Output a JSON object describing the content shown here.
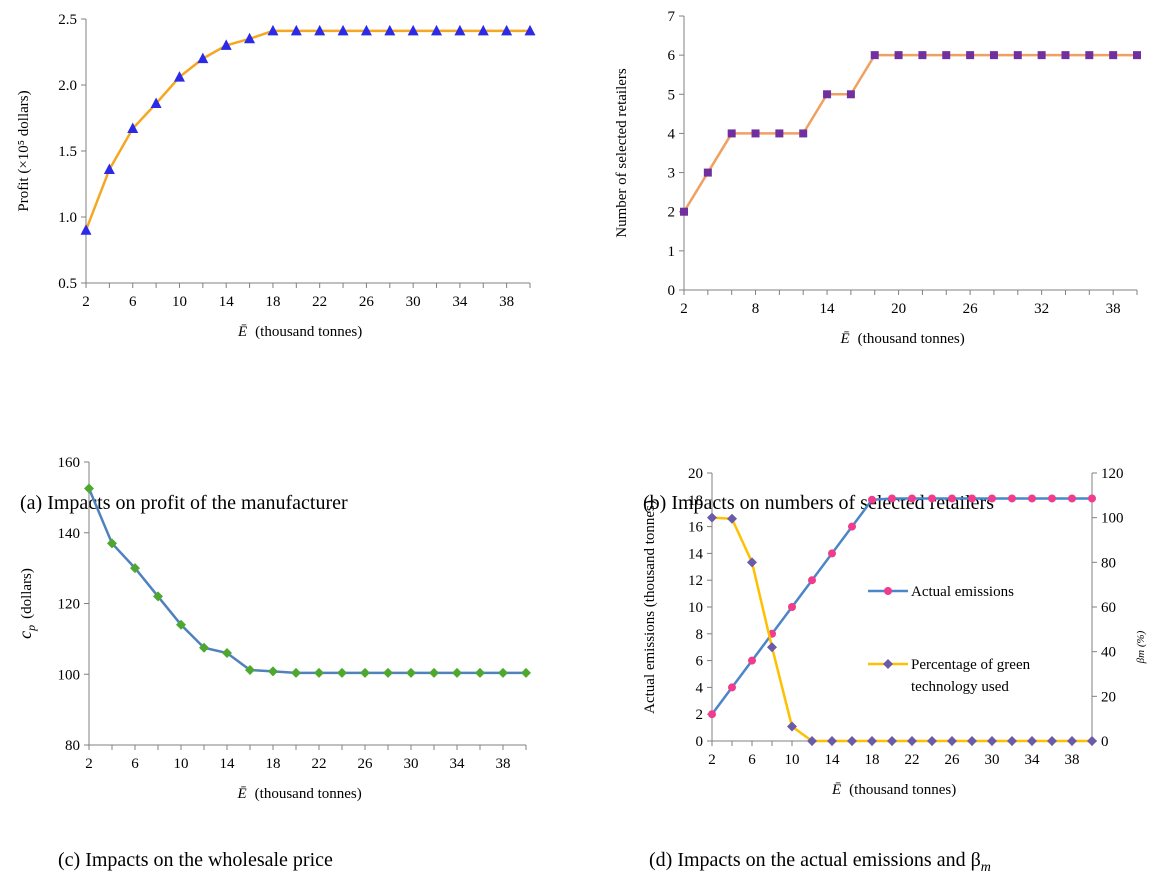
{
  "chart_data": [
    {
      "id": "a",
      "type": "line",
      "caption": "(a) Impacts on profit of the manufacturer",
      "xlabel_sym": "Ē",
      "xlabel": "(thousand tonnes)",
      "ylabel": "Profit  (×10⁵ dollars)",
      "ylim": [
        0.5,
        2.5
      ],
      "yticks": [
        "0.5",
        "1.0",
        "1.5",
        "2.0",
        "2.5"
      ],
      "ytick_values": [
        0.5,
        1.0,
        1.5,
        2.0,
        2.5
      ],
      "xticks": [
        "2",
        "6",
        "10",
        "14",
        "18",
        "22",
        "26",
        "30",
        "34",
        "38"
      ],
      "x": [
        2,
        4,
        6,
        8,
        10,
        12,
        14,
        16,
        18,
        20,
        22,
        24,
        26,
        28,
        30,
        32,
        34,
        36,
        38,
        40
      ],
      "series": [
        {
          "values": [
            0.9,
            1.36,
            1.67,
            1.86,
            2.06,
            2.2,
            2.3,
            2.35,
            2.41,
            2.41,
            2.41,
            2.41,
            2.41,
            2.41,
            2.41,
            2.41,
            2.41,
            2.41,
            2.41,
            2.41
          ],
          "line_color": "#F5A623",
          "marker": "triangle",
          "marker_color": "#2A2AE8"
        }
      ],
      "grid": false
    },
    {
      "id": "b",
      "type": "line",
      "caption": "(b) Impacts on numbers of selected retailers",
      "xlabel_sym": "Ē",
      "xlabel": "(thousand tonnes)",
      "ylabel": "Number of selected retailers",
      "ylim": [
        0,
        7
      ],
      "yticks": [
        "0",
        "1",
        "2",
        "3",
        "4",
        "5",
        "6",
        "7"
      ],
      "ytick_values": [
        0,
        1,
        2,
        3,
        4,
        5,
        6,
        7
      ],
      "xticks": [
        "2",
        "8",
        "14",
        "20",
        "26",
        "32",
        "38"
      ],
      "x": [
        2,
        4,
        6,
        8,
        10,
        12,
        14,
        16,
        18,
        20,
        22,
        24,
        26,
        28,
        30,
        32,
        34,
        36,
        38,
        40
      ],
      "series": [
        {
          "values": [
            2,
            3,
            4,
            4,
            4,
            4,
            5,
            5,
            6,
            6,
            6,
            6,
            6,
            6,
            6,
            6,
            6,
            6,
            6,
            6
          ],
          "line_color": "#F0A060",
          "marker": "square",
          "marker_color": "#7030A0"
        }
      ],
      "grid": false
    },
    {
      "id": "c",
      "type": "line",
      "caption": "(c) Impacts on the wholesale price",
      "xlabel_sym": "Ē",
      "xlabel": "(thousand tonnes)",
      "ylabel_sym": "c",
      "ylabel_sub": "p",
      "ylabel": "(dollars)",
      "ylim": [
        80,
        160
      ],
      "yticks": [
        "80",
        "100",
        "120",
        "140",
        "160"
      ],
      "ytick_values": [
        80,
        100,
        120,
        140,
        160
      ],
      "xticks": [
        "2",
        "6",
        "10",
        "14",
        "18",
        "22",
        "26",
        "30",
        "34",
        "38"
      ],
      "x": [
        2,
        4,
        6,
        8,
        10,
        12,
        14,
        16,
        18,
        20,
        22,
        24,
        26,
        28,
        30,
        32,
        34,
        36,
        38,
        40
      ],
      "series": [
        {
          "values": [
            152.5,
            137.0,
            130.0,
            122.0,
            114.0,
            107.5,
            106.0,
            101.2,
            100.8,
            100.4,
            100.4,
            100.4,
            100.4,
            100.4,
            100.4,
            100.4,
            100.4,
            100.4,
            100.4,
            100.4
          ],
          "line_color": "#4F81BD",
          "marker": "diamond",
          "marker_color": "#4EA72E"
        }
      ],
      "grid": false
    },
    {
      "id": "d",
      "type": "line",
      "caption": "(d) Impacts on the actual emissions and β",
      "caption_sub": "m",
      "xlabel_sym": "Ē",
      "xlabel": "(thousand tonnes)",
      "ylabel": "Actual emissions  (thousand tonnes)",
      "y2label": "βm (%)",
      "ylim": [
        0,
        20
      ],
      "yticks": [
        "0",
        "2",
        "4",
        "6",
        "8",
        "10",
        "12",
        "14",
        "16",
        "18",
        "20"
      ],
      "ytick_values": [
        0,
        2,
        4,
        6,
        8,
        10,
        12,
        14,
        16,
        18,
        20
      ],
      "y2lim": [
        0,
        120
      ],
      "y2ticks": [
        "0",
        "20",
        "40",
        "60",
        "80",
        "100",
        "120"
      ],
      "y2tick_values": [
        0,
        20,
        40,
        60,
        80,
        100,
        120
      ],
      "xticks": [
        "2",
        "6",
        "10",
        "14",
        "18",
        "22",
        "26",
        "30",
        "34",
        "38"
      ],
      "x": [
        2,
        4,
        6,
        8,
        10,
        12,
        14,
        16,
        18,
        20,
        22,
        24,
        26,
        28,
        30,
        32,
        34,
        36,
        38,
        40
      ],
      "series": [
        {
          "name": "Actual emissions",
          "axis": "left",
          "values": [
            2,
            4,
            6,
            8,
            10,
            12,
            14,
            16,
            18,
            18.1,
            18.1,
            18.1,
            18.1,
            18.1,
            18.1,
            18.1,
            18.1,
            18.1,
            18.1,
            18.1
          ],
          "line_color": "#4A86C8",
          "marker": "circle",
          "marker_color": "#F03C8C"
        },
        {
          "name": "Percentage of green technology used",
          "axis": "right",
          "values": [
            100,
            99.5,
            80,
            42,
            6.5,
            0,
            0,
            0,
            0,
            0,
            0,
            0,
            0,
            0,
            0,
            0,
            0,
            0,
            0,
            0
          ],
          "line_color": "#FFC000",
          "marker": "diamond",
          "marker_color": "#6A5AA8"
        }
      ],
      "legend": [
        "Actual emissions",
        "Percentage of green technology used"
      ],
      "legend_lines": [
        "Percentage of green",
        "technology used"
      ],
      "legend_placement": "center-right",
      "grid": false
    }
  ]
}
